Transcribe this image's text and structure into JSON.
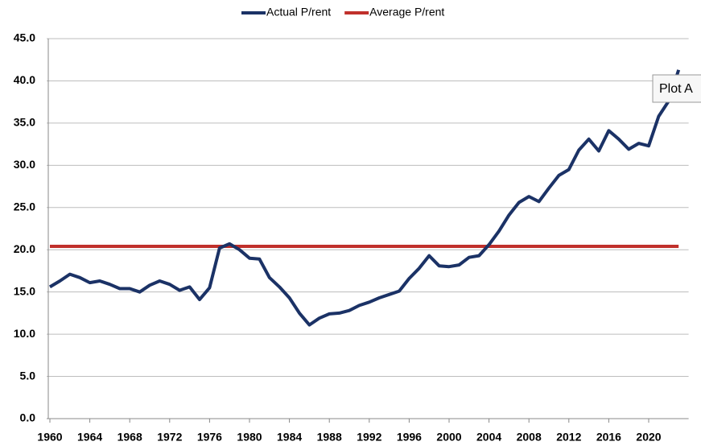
{
  "chart_data": {
    "type": "line",
    "x": [
      1960,
      1961,
      1962,
      1963,
      1964,
      1965,
      1966,
      1967,
      1968,
      1969,
      1970,
      1971,
      1972,
      1973,
      1974,
      1975,
      1976,
      1977,
      1978,
      1979,
      1980,
      1981,
      1982,
      1983,
      1984,
      1985,
      1986,
      1987,
      1988,
      1989,
      1990,
      1991,
      1992,
      1993,
      1994,
      1995,
      1996,
      1997,
      1998,
      1999,
      2000,
      2001,
      2002,
      2003,
      2004,
      2005,
      2006,
      2007,
      2008,
      2009,
      2010,
      2011,
      2012,
      2013,
      2014,
      2015,
      2016,
      2017,
      2018,
      2019,
      2020,
      2021,
      2022,
      2023
    ],
    "series": [
      {
        "name": "Actual P/rent",
        "color": "#1b3266",
        "values": [
          15.6,
          16.3,
          17.1,
          16.7,
          16.1,
          16.3,
          15.9,
          15.4,
          15.4,
          15.0,
          15.8,
          16.3,
          15.9,
          15.2,
          15.6,
          14.1,
          15.5,
          20.2,
          20.7,
          20.0,
          19.0,
          18.9,
          16.7,
          15.6,
          14.3,
          12.5,
          11.1,
          11.9,
          12.4,
          12.5,
          12.8,
          13.4,
          13.8,
          14.3,
          14.7,
          15.1,
          16.6,
          17.8,
          19.3,
          18.1,
          18.0,
          18.2,
          19.1,
          19.3,
          20.6,
          22.2,
          24.1,
          25.6,
          26.3,
          25.7,
          27.3,
          28.8,
          29.5,
          31.8,
          33.1,
          31.7,
          34.1,
          33.1,
          31.9,
          32.6,
          32.3,
          35.8,
          37.6,
          41.3
        ]
      },
      {
        "name": "Average P/rent",
        "color": "#c0302b",
        "values": [
          20.4,
          20.4,
          20.4,
          20.4,
          20.4,
          20.4,
          20.4,
          20.4,
          20.4,
          20.4,
          20.4,
          20.4,
          20.4,
          20.4,
          20.4,
          20.4,
          20.4,
          20.4,
          20.4,
          20.4,
          20.4,
          20.4,
          20.4,
          20.4,
          20.4,
          20.4,
          20.4,
          20.4,
          20.4,
          20.4,
          20.4,
          20.4,
          20.4,
          20.4,
          20.4,
          20.4,
          20.4,
          20.4,
          20.4,
          20.4,
          20.4,
          20.4,
          20.4,
          20.4,
          20.4,
          20.4,
          20.4,
          20.4,
          20.4,
          20.4,
          20.4,
          20.4,
          20.4,
          20.4,
          20.4,
          20.4,
          20.4,
          20.4,
          20.4,
          20.4,
          20.4,
          20.4,
          20.4,
          20.4
        ]
      }
    ],
    "xlim": [
      1960,
      2024
    ],
    "xticks": [
      1960,
      1964,
      1968,
      1972,
      1976,
      1980,
      1984,
      1988,
      1992,
      1996,
      2000,
      2004,
      2008,
      2012,
      2016,
      2020
    ],
    "ylim": [
      0,
      45
    ],
    "yticks": [
      {
        "value": 0,
        "label": "0.0"
      },
      {
        "value": 5,
        "label": "5.0"
      },
      {
        "value": 10,
        "label": "10.0"
      },
      {
        "value": 15,
        "label": "15.0"
      },
      {
        "value": 20,
        "label": "20.0"
      },
      {
        "value": 25,
        "label": "25.0"
      },
      {
        "value": 30,
        "label": "30.0"
      },
      {
        "value": 35,
        "label": "35.0"
      },
      {
        "value": 40,
        "label": "40.0"
      },
      {
        "value": 45,
        "label": "45.0"
      }
    ],
    "grid": true,
    "legend": "top",
    "tooltip": "Plot A"
  }
}
